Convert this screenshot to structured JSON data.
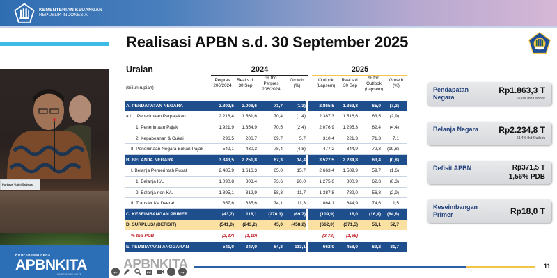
{
  "header": {
    "ministry_line1": "KEMENTERIAN KEUANGAN",
    "ministry_line2": "REPUBLIK INDONESIA",
    "gradient_start": "#2f6db1",
    "gradient_end": "#d6b7d6"
  },
  "slide": {
    "title": "Realisasi APBN s.d. 30 September 2025",
    "page_number": "11",
    "accent_blue": "#1f4e8c",
    "accent_yellow": "#f2c447",
    "accent_cyan": "#3dbbe6"
  },
  "video": {
    "name_card": "Purbaya Yudhi Sadewa"
  },
  "banner": {
    "small": "KONFERENSI PERS",
    "big": "APBNKITA",
    "tag": "KINERJA DAN FAKTA"
  },
  "watermark": "APBNKITA",
  "toolbar": {
    "icons": [
      "arrow-left-icon",
      "pencil-icon",
      "magnifier-icon",
      "closed-caption-icon",
      "video-camera-icon",
      "more-icon",
      "arrow-right-icon"
    ]
  },
  "table": {
    "title": "Uraian",
    "unit": "(triliun rupiah)",
    "years": [
      "2024",
      "2025"
    ],
    "columns": [
      [
        "Perpres",
        "206/2024"
      ],
      [
        "Real s.d.",
        "30 Sep"
      ],
      [
        "% thd",
        "Perpres",
        "206/2024"
      ],
      [
        "Growth",
        "(%)"
      ],
      [
        "Outlook",
        "(Lapsem)"
      ],
      [
        "Real s.d.",
        "30 Sep"
      ],
      [
        "% thd",
        "Outlook",
        "(Lapsem)"
      ],
      [
        "Growth",
        "(%)"
      ]
    ],
    "rows": [
      {
        "label": "A. PENDAPATAN NEGARA",
        "style": "blue",
        "indent": 0,
        "values": [
          "2.802,5",
          "2.008,6",
          "71,7",
          "(1,3)",
          "2.865,5",
          "1.863,3",
          "65,0",
          "(7,2)"
        ]
      },
      {
        "label": "a.i. I. Penerimaan Perpajakan",
        "style": "normal",
        "indent": 0,
        "values": [
          "2.218,4",
          "1.561,6",
          "70,4",
          "(1,4)",
          "2.387,3",
          "1.516,6",
          "63,5",
          "(2,9)"
        ]
      },
      {
        "label": "1. Penerimaan Pajak",
        "style": "normal",
        "indent": 2,
        "values": [
          "1.921,9",
          "1.354,9",
          "70,5",
          "(2,4)",
          "2.076,9",
          "1.295,3",
          "62,4",
          "(4,4)"
        ]
      },
      {
        "label": "2. Kepabeanan & Cukai",
        "style": "normal",
        "indent": 2,
        "values": [
          "296,5",
          "206,7",
          "69,7",
          "5,7",
          "310,4",
          "221,3",
          "71,3",
          "7,1"
        ]
      },
      {
        "label": "II. Penerimaan Negara Bukan Pajak",
        "style": "normal",
        "indent": 1,
        "values": [
          "549,1",
          "430,3",
          "78,4",
          "(4,8)",
          "477,2",
          "344,9",
          "72,3",
          "(19,8)"
        ]
      },
      {
        "label": "B. BELANJA NEGARA",
        "style": "blue",
        "indent": 0,
        "values": [
          "3.343,5",
          "2.251,8",
          "67,3",
          "14,4",
          "3.527,5",
          "2.234,8",
          "63,4",
          "(0,8)"
        ]
      },
      {
        "label": "I. Belanja Pemerintah Pusat",
        "style": "normal",
        "indent": 1,
        "values": [
          "2.485,9",
          "1.616,3",
          "65,0",
          "15,7",
          "2.663,4",
          "1.589,9",
          "59,7",
          "(1,6)"
        ]
      },
      {
        "label": "1. Belanja K/L",
        "style": "normal",
        "indent": 2,
        "values": [
          "1.090,8",
          "803,4",
          "73,6",
          "20,0",
          "1.275,6",
          "800,9",
          "62,8",
          "(0,3)"
        ]
      },
      {
        "label": "2. Belanja non-K/L",
        "style": "normal",
        "indent": 2,
        "values": [
          "1.395,1",
          "812,9",
          "58,3",
          "11,7",
          "1.387,8",
          "789,0",
          "56,8",
          "(2,9)"
        ]
      },
      {
        "label": "II. Transfer Ke Daerah",
        "style": "normal",
        "indent": 1,
        "values": [
          "857,6",
          "635,6",
          "74,1",
          "11,3",
          "864,1",
          "644,9",
          "74,6",
          "1,5"
        ]
      },
      {
        "label": "C. KESEIMBANGAN PRIMER",
        "style": "blue",
        "indent": 0,
        "values": [
          "(43,7)",
          "118,1",
          "(270,1)",
          "(69,7)",
          "(109,9)",
          "18,0",
          "(16,4)",
          "(84,8)"
        ]
      },
      {
        "label": "D. SURPLUS/ (DEFISIT)",
        "style": "yellow",
        "indent": 0,
        "values": [
          "(541,0)",
          "(243,2)",
          "45,0",
          "(458,2)",
          "(662,0)",
          "(371,5)",
          "56,1",
          "52,7"
        ]
      },
      {
        "label": "% thd PDB",
        "style": "pdb",
        "indent": 1,
        "values": [
          "(2,37)",
          "(1,10)",
          "",
          "",
          "(2,78)",
          "(1,56)",
          "",
          ""
        ]
      },
      {
        "label": "E. PEMBIAYAAN ANGGARAN",
        "style": "blue",
        "indent": 0,
        "values": [
          "541,0",
          "347,9",
          "64,3",
          "113,1",
          "662,0",
          "458,0",
          "69,2",
          "31,7"
        ]
      }
    ]
  },
  "cards": [
    {
      "key": "Pendapatan Negara",
      "value": "Rp1.863,3 T",
      "sub": "65,0% thd Outlook"
    },
    {
      "key": "Belanja Negara",
      "value": "Rp2.234,8 T",
      "sub": "63,4% thd Outlook"
    },
    {
      "key": "Defisit APBN",
      "value": "Rp371,5 T",
      "value2": "1,56% PDB"
    },
    {
      "key": "Keseimbangan Primer",
      "value": "Rp18,0 T"
    }
  ]
}
